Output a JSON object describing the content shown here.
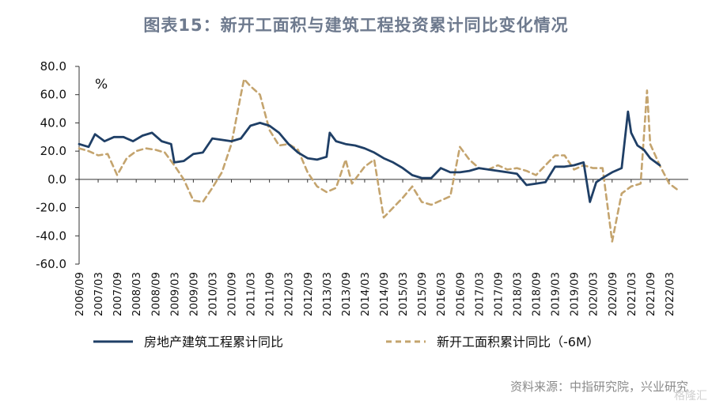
{
  "title": "图表15：新开工面积与建筑工程投资累计同比变化情况",
  "source": "资料来源：中指研究院，兴业研究",
  "watermark": "格隆汇",
  "chart_data": {
    "type": "line",
    "unit": "%",
    "ylim": [
      -60,
      80
    ],
    "yticks": [
      "80.0",
      "60.0",
      "40.0",
      "20.0",
      "0.0",
      "-20.0",
      "-40.0",
      "-60.0"
    ],
    "xtick_labels": [
      "2006/09",
      "2007/03",
      "2007/09",
      "2008/03",
      "2008/09",
      "2009/03",
      "2009/09",
      "2010/03",
      "2010/09",
      "2011/03",
      "2011/09",
      "2012/03",
      "2012/09",
      "2013/03",
      "2013/09",
      "2014/03",
      "2014/09",
      "2015/03",
      "2015/09",
      "2016/03",
      "2016/09",
      "2017/03",
      "2017/09",
      "2018/03",
      "2018/09",
      "2019/03",
      "2019/09",
      "2020/03",
      "2020/09",
      "2021/03",
      "2021/09",
      "2022/03"
    ],
    "x_start": "2006/09",
    "x_end": "2022/09",
    "grid": false,
    "legend_position": "bottom",
    "series": [
      {
        "name": "房地产建筑工程累计同比",
        "color": "#1f3f66",
        "style": "solid",
        "points": [
          [
            "2006/09",
            25
          ],
          [
            "2006/12",
            23
          ],
          [
            "2007/02",
            32
          ],
          [
            "2007/05",
            27
          ],
          [
            "2007/08",
            30
          ],
          [
            "2007/11",
            30
          ],
          [
            "2008/02",
            27
          ],
          [
            "2008/05",
            31
          ],
          [
            "2008/08",
            33
          ],
          [
            "2008/11",
            27
          ],
          [
            "2009/02",
            25
          ],
          [
            "2009/03",
            12
          ],
          [
            "2009/06",
            13
          ],
          [
            "2009/09",
            18
          ],
          [
            "2009/12",
            19
          ],
          [
            "2010/03",
            29
          ],
          [
            "2010/06",
            28
          ],
          [
            "2010/09",
            27
          ],
          [
            "2010/12",
            29
          ],
          [
            "2011/03",
            38
          ],
          [
            "2011/06",
            40
          ],
          [
            "2011/09",
            38
          ],
          [
            "2011/12",
            33
          ],
          [
            "2012/03",
            25
          ],
          [
            "2012/06",
            19
          ],
          [
            "2012/09",
            15
          ],
          [
            "2012/12",
            14
          ],
          [
            "2013/03",
            16
          ],
          [
            "2013/04",
            33
          ],
          [
            "2013/06",
            27
          ],
          [
            "2013/09",
            25
          ],
          [
            "2013/12",
            24
          ],
          [
            "2014/03",
            22
          ],
          [
            "2014/06",
            19
          ],
          [
            "2014/09",
            15
          ],
          [
            "2014/12",
            12
          ],
          [
            "2015/03",
            8
          ],
          [
            "2015/06",
            3
          ],
          [
            "2015/09",
            1
          ],
          [
            "2015/12",
            1
          ],
          [
            "2016/03",
            8
          ],
          [
            "2016/06",
            5
          ],
          [
            "2016/09",
            5
          ],
          [
            "2016/12",
            6
          ],
          [
            "2017/03",
            8
          ],
          [
            "2017/06",
            7
          ],
          [
            "2017/09",
            6
          ],
          [
            "2017/12",
            5
          ],
          [
            "2018/03",
            4
          ],
          [
            "2018/06",
            -4
          ],
          [
            "2018/09",
            -3
          ],
          [
            "2018/12",
            -2
          ],
          [
            "2019/03",
            9
          ],
          [
            "2019/06",
            9
          ],
          [
            "2019/09",
            10
          ],
          [
            "2019/12",
            12
          ],
          [
            "2020/02",
            -16
          ],
          [
            "2020/04",
            -2
          ],
          [
            "2020/06",
            1
          ],
          [
            "2020/09",
            5
          ],
          [
            "2020/12",
            8
          ],
          [
            "2021/02",
            48
          ],
          [
            "2021/03",
            33
          ],
          [
            "2021/05",
            24
          ],
          [
            "2021/07",
            21
          ],
          [
            "2021/09",
            15
          ],
          [
            "2021/12",
            10
          ]
        ]
      },
      {
        "name": "新开工面积累计同比（-6M）",
        "color": "#c4a46e",
        "style": "dashed",
        "points": [
          [
            "2006/09",
            22
          ],
          [
            "2006/12",
            20
          ],
          [
            "2007/03",
            17
          ],
          [
            "2007/06",
            18
          ],
          [
            "2007/09",
            3
          ],
          [
            "2007/12",
            15
          ],
          [
            "2008/03",
            20
          ],
          [
            "2008/06",
            22
          ],
          [
            "2008/09",
            21
          ],
          [
            "2008/12",
            19
          ],
          [
            "2009/03",
            10
          ],
          [
            "2009/06",
            0
          ],
          [
            "2009/09",
            -15
          ],
          [
            "2009/12",
            -16
          ],
          [
            "2010/03",
            -6
          ],
          [
            "2010/06",
            5
          ],
          [
            "2010/09",
            25
          ],
          [
            "2010/12",
            60
          ],
          [
            "2011/01",
            71
          ],
          [
            "2011/03",
            66
          ],
          [
            "2011/06",
            60
          ],
          [
            "2011/09",
            35
          ],
          [
            "2011/12",
            24
          ],
          [
            "2012/03",
            25
          ],
          [
            "2012/06",
            21
          ],
          [
            "2012/09",
            5
          ],
          [
            "2012/12",
            -5
          ],
          [
            "2013/03",
            -9
          ],
          [
            "2013/06",
            -6
          ],
          [
            "2013/09",
            14
          ],
          [
            "2013/11",
            -3
          ],
          [
            "2014/03",
            9
          ],
          [
            "2014/06",
            14
          ],
          [
            "2014/09",
            -27
          ],
          [
            "2014/12",
            -20
          ],
          [
            "2015/03",
            -13
          ],
          [
            "2015/06",
            -5
          ],
          [
            "2015/09",
            -16
          ],
          [
            "2015/12",
            -18
          ],
          [
            "2016/03",
            -15
          ],
          [
            "2016/06",
            -12
          ],
          [
            "2016/09",
            23
          ],
          [
            "2016/12",
            14
          ],
          [
            "2017/03",
            8
          ],
          [
            "2017/06",
            7
          ],
          [
            "2017/09",
            10
          ],
          [
            "2017/12",
            7
          ],
          [
            "2018/03",
            8
          ],
          [
            "2018/06",
            6
          ],
          [
            "2018/09",
            3
          ],
          [
            "2018/12",
            10
          ],
          [
            "2019/03",
            17
          ],
          [
            "2019/06",
            17
          ],
          [
            "2019/09",
            7
          ],
          [
            "2019/12",
            10
          ],
          [
            "2020/03",
            8
          ],
          [
            "2020/06",
            8
          ],
          [
            "2020/09",
            -44
          ],
          [
            "2020/12",
            -10
          ],
          [
            "2021/03",
            -5
          ],
          [
            "2021/06",
            -3
          ],
          [
            "2021/08",
            63
          ],
          [
            "2021/09",
            25
          ],
          [
            "2021/12",
            10
          ],
          [
            "2022/03",
            -3
          ],
          [
            "2022/06",
            -8
          ]
        ]
      }
    ]
  }
}
